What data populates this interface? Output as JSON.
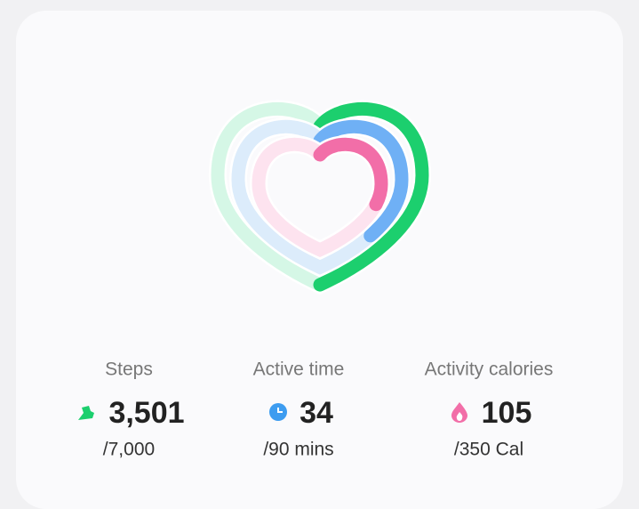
{
  "metrics": [
    {
      "label": "Steps",
      "value": "3,501",
      "goal": "/7,000"
    },
    {
      "label": "Active time",
      "value": "34",
      "goal": "/90 mins"
    },
    {
      "label": "Activity calories",
      "value": "105",
      "goal": "/350 Cal"
    }
  ]
}
